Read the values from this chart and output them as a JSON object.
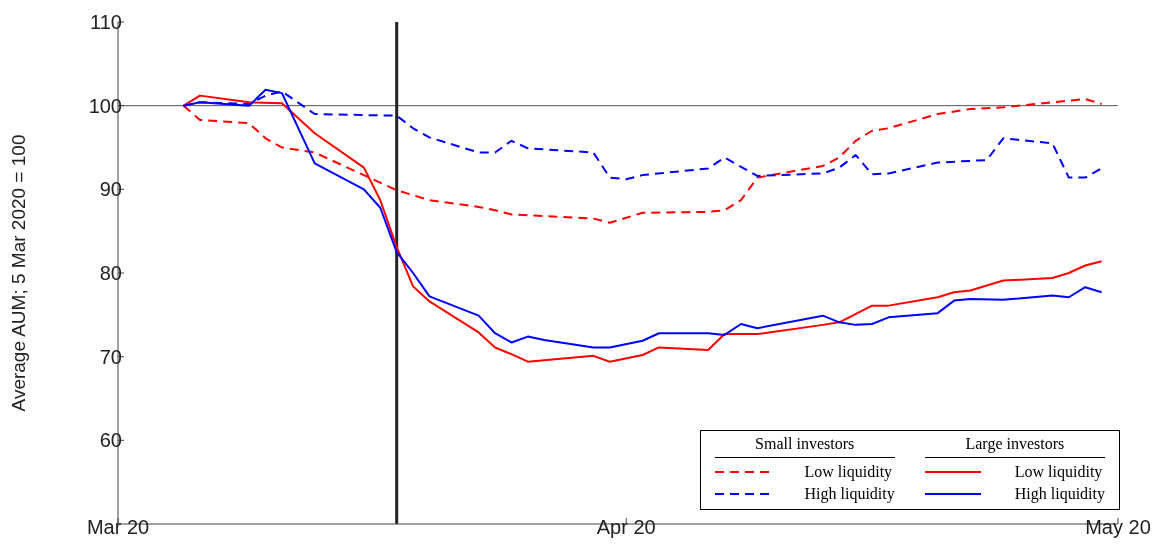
{
  "chart_data": {
    "type": "line",
    "ylabel": "Average AUM; 5 Mar 2020 = 100",
    "xlim": [
      "2020-03-01",
      "2020-05-01"
    ],
    "xticks": [
      {
        "value": "2020-03-01",
        "label": "Mar 20"
      },
      {
        "value": "2020-04-01",
        "label": "Apr 20"
      },
      {
        "value": "2020-05-01",
        "label": "May 20"
      }
    ],
    "ylim": [
      50,
      110
    ],
    "yticks": [
      60,
      70,
      80,
      90,
      100,
      110
    ],
    "grid": false,
    "legend": "bottom right",
    "marker": "none",
    "annotations": [
      "Small investors",
      "Large investors"
    ],
    "ref_lines": [
      {
        "axis": "y",
        "value": 100,
        "label": null,
        "color": "#555555"
      },
      {
        "axis": "x",
        "value": "2020-03-18",
        "label": null,
        "color": "#222222"
      }
    ],
    "series": [
      {
        "name": "Low liquidity",
        "color": "#ff0000",
        "line_style": "dashed",
        "x": [
          "2020-03-05",
          "2020-03-06",
          "2020-03-09",
          "2020-03-10",
          "2020-03-11",
          "2020-03-13",
          "2020-03-16",
          "2020-03-18",
          "2020-03-20",
          "2020-03-23",
          "2020-03-24",
          "2020-03-25",
          "2020-03-30",
          "2020-03-31",
          "2020-04-02",
          "2020-04-06",
          "2020-04-07",
          "2020-04-08",
          "2020-04-09",
          "2020-04-13",
          "2020-04-14",
          "2020-04-15",
          "2020-04-16",
          "2020-04-17",
          "2020-04-20",
          "2020-04-22",
          "2020-04-24",
          "2020-04-27",
          "2020-04-29",
          "2020-04-30"
        ],
        "values": [
          100,
          98.3,
          97.9,
          96.1,
          95,
          94.4,
          91.7,
          89.9,
          88.7,
          87.9,
          87.5,
          87,
          86.5,
          86,
          87.2,
          87.3,
          87.5,
          88.7,
          91.4,
          92.8,
          93.8,
          95.8,
          97,
          97.3,
          99,
          99.6,
          99.8,
          100.4,
          100.8,
          100.2
        ]
      },
      {
        "name": "High liquidity",
        "color": "#0000ff",
        "line_style": "dashed",
        "x": [
          "2020-03-05",
          "2020-03-06",
          "2020-03-09",
          "2020-03-10",
          "2020-03-11",
          "2020-03-13",
          "2020-03-18",
          "2020-03-19",
          "2020-03-20",
          "2020-03-23",
          "2020-03-24",
          "2020-03-25",
          "2020-03-26",
          "2020-03-30",
          "2020-03-31",
          "2020-04-01",
          "2020-04-02",
          "2020-04-06",
          "2020-04-07",
          "2020-04-09",
          "2020-04-13",
          "2020-04-14",
          "2020-04-15",
          "2020-04-16",
          "2020-04-17",
          "2020-04-20",
          "2020-04-23",
          "2020-04-24",
          "2020-04-27",
          "2020-04-28",
          "2020-04-29",
          "2020-04-30"
        ],
        "values": [
          100,
          100.4,
          100.2,
          101.2,
          101.7,
          99,
          98.8,
          97.3,
          96.2,
          94.4,
          94.4,
          95.8,
          94.9,
          94.4,
          91.4,
          91.2,
          91.7,
          92.5,
          93.8,
          91.6,
          91.9,
          92.6,
          94.1,
          91.8,
          91.9,
          93.2,
          93.5,
          96.1,
          95.5,
          91.4,
          91.4,
          92.5
        ]
      },
      {
        "name": "Low liquidity",
        "color": "#ff0000",
        "line_style": "solid",
        "x": [
          "2020-03-05",
          "2020-03-06",
          "2020-03-09",
          "2020-03-11",
          "2020-03-13",
          "2020-03-16",
          "2020-03-17",
          "2020-03-18",
          "2020-03-19",
          "2020-03-20",
          "2020-03-23",
          "2020-03-24",
          "2020-03-25",
          "2020-03-26",
          "2020-03-30",
          "2020-03-31",
          "2020-04-02",
          "2020-04-03",
          "2020-04-06",
          "2020-04-07",
          "2020-04-09",
          "2020-04-13",
          "2020-04-14",
          "2020-04-16",
          "2020-04-17",
          "2020-04-20",
          "2020-04-21",
          "2020-04-22",
          "2020-04-24",
          "2020-04-27",
          "2020-04-28",
          "2020-04-29",
          "2020-04-30"
        ],
        "values": [
          100,
          101.2,
          100.4,
          100.3,
          96.7,
          92.6,
          88.7,
          83.1,
          78.4,
          76.6,
          72.9,
          71.1,
          70.3,
          69.4,
          70.1,
          69.4,
          70.2,
          71.1,
          70.8,
          72.7,
          72.7,
          73.8,
          74.1,
          76.1,
          76.1,
          77.1,
          77.7,
          77.9,
          79.1,
          79.4,
          80,
          80.9,
          81.4
        ]
      },
      {
        "name": "High liquidity",
        "color": "#0000ff",
        "line_style": "solid",
        "x": [
          "2020-03-05",
          "2020-03-06",
          "2020-03-09",
          "2020-03-10",
          "2020-03-11",
          "2020-03-13",
          "2020-03-16",
          "2020-03-17",
          "2020-03-18",
          "2020-03-19",
          "2020-03-20",
          "2020-03-23",
          "2020-03-24",
          "2020-03-25",
          "2020-03-26",
          "2020-03-27",
          "2020-03-30",
          "2020-03-31",
          "2020-04-02",
          "2020-04-03",
          "2020-04-06",
          "2020-04-07",
          "2020-04-08",
          "2020-04-09",
          "2020-04-13",
          "2020-04-14",
          "2020-04-15",
          "2020-04-16",
          "2020-04-17",
          "2020-04-20",
          "2020-04-21",
          "2020-04-22",
          "2020-04-24",
          "2020-04-27",
          "2020-04-28",
          "2020-04-29",
          "2020-04-30"
        ],
        "values": [
          100,
          100.4,
          100,
          101.9,
          101.5,
          93.1,
          90,
          87.8,
          82.5,
          80,
          77.2,
          74.9,
          72.8,
          71.7,
          72.4,
          72,
          71.1,
          71.1,
          71.9,
          72.8,
          72.8,
          72.6,
          73.9,
          73.4,
          74.9,
          74.1,
          73.8,
          73.9,
          74.7,
          75.2,
          76.7,
          76.9,
          76.8,
          77.3,
          77.1,
          78.3,
          77.7
        ]
      }
    ]
  }
}
